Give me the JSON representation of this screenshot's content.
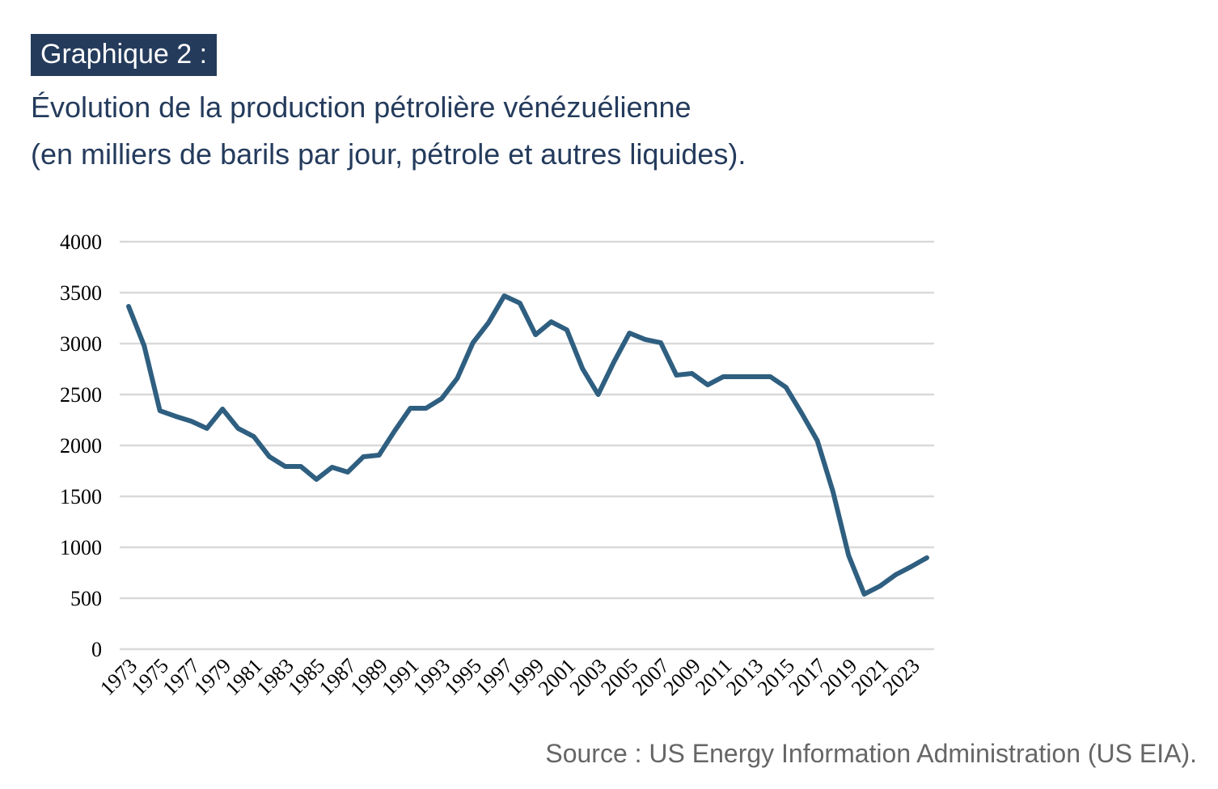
{
  "header": {
    "tag": "Graphique 2 :",
    "title_line1": "Évolution de la production pétrolière vénézuélienne",
    "title_line2": "(en milliers de barils par jour, pétrole et autres liquides)."
  },
  "source": "Source : US Energy Information Administration (US EIA).",
  "colors": {
    "line": "#2f5f80",
    "grid": "#d9d9d9",
    "tag_bg": "#243b5c"
  },
  "chart_data": {
    "type": "line",
    "title": "Évolution de la production pétrolière vénézuélienne",
    "ylabel": "milliers de barils par jour",
    "xlabel": "",
    "ylim": [
      0,
      4000
    ],
    "yticks": [
      0,
      500,
      1000,
      1500,
      2000,
      2500,
      3000,
      3500,
      4000
    ],
    "xtick_labels": [
      "1973",
      "1975",
      "1977",
      "1979",
      "1981",
      "1983",
      "1985",
      "1987",
      "1989",
      "1991",
      "1993",
      "1995",
      "1997",
      "1999",
      "2001",
      "2003",
      "2005",
      "2007",
      "2009",
      "2011",
      "2013",
      "2015",
      "2017",
      "2019",
      "2021",
      "2023"
    ],
    "grid": true,
    "x": [
      1973,
      1974,
      1975,
      1976,
      1977,
      1978,
      1979,
      1980,
      1981,
      1982,
      1983,
      1984,
      1985,
      1986,
      1987,
      1988,
      1989,
      1990,
      1991,
      1992,
      1993,
      1994,
      1995,
      1996,
      1997,
      1998,
      1999,
      2000,
      2001,
      2002,
      2003,
      2004,
      2005,
      2006,
      2007,
      2008,
      2009,
      2010,
      2011,
      2012,
      2013,
      2014,
      2015,
      2016,
      2017,
      2018,
      2019,
      2020,
      2021,
      2022,
      2023,
      2024
    ],
    "series": [
      {
        "name": "Production",
        "values": [
          3365,
          2976,
          2341,
          2286,
          2238,
          2167,
          2357,
          2167,
          2087,
          1889,
          1794,
          1794,
          1667,
          1786,
          1738,
          1889,
          1905,
          2143,
          2365,
          2365,
          2460,
          2659,
          3008,
          3206,
          3468,
          3397,
          3087,
          3214,
          3135,
          2754,
          2500,
          2817,
          3103,
          3040,
          3008,
          2690,
          2706,
          2595,
          2675,
          2675,
          2675,
          2675,
          2571,
          2317,
          2048,
          1548,
          921,
          540,
          619,
          730,
          810,
          897
        ]
      }
    ]
  }
}
